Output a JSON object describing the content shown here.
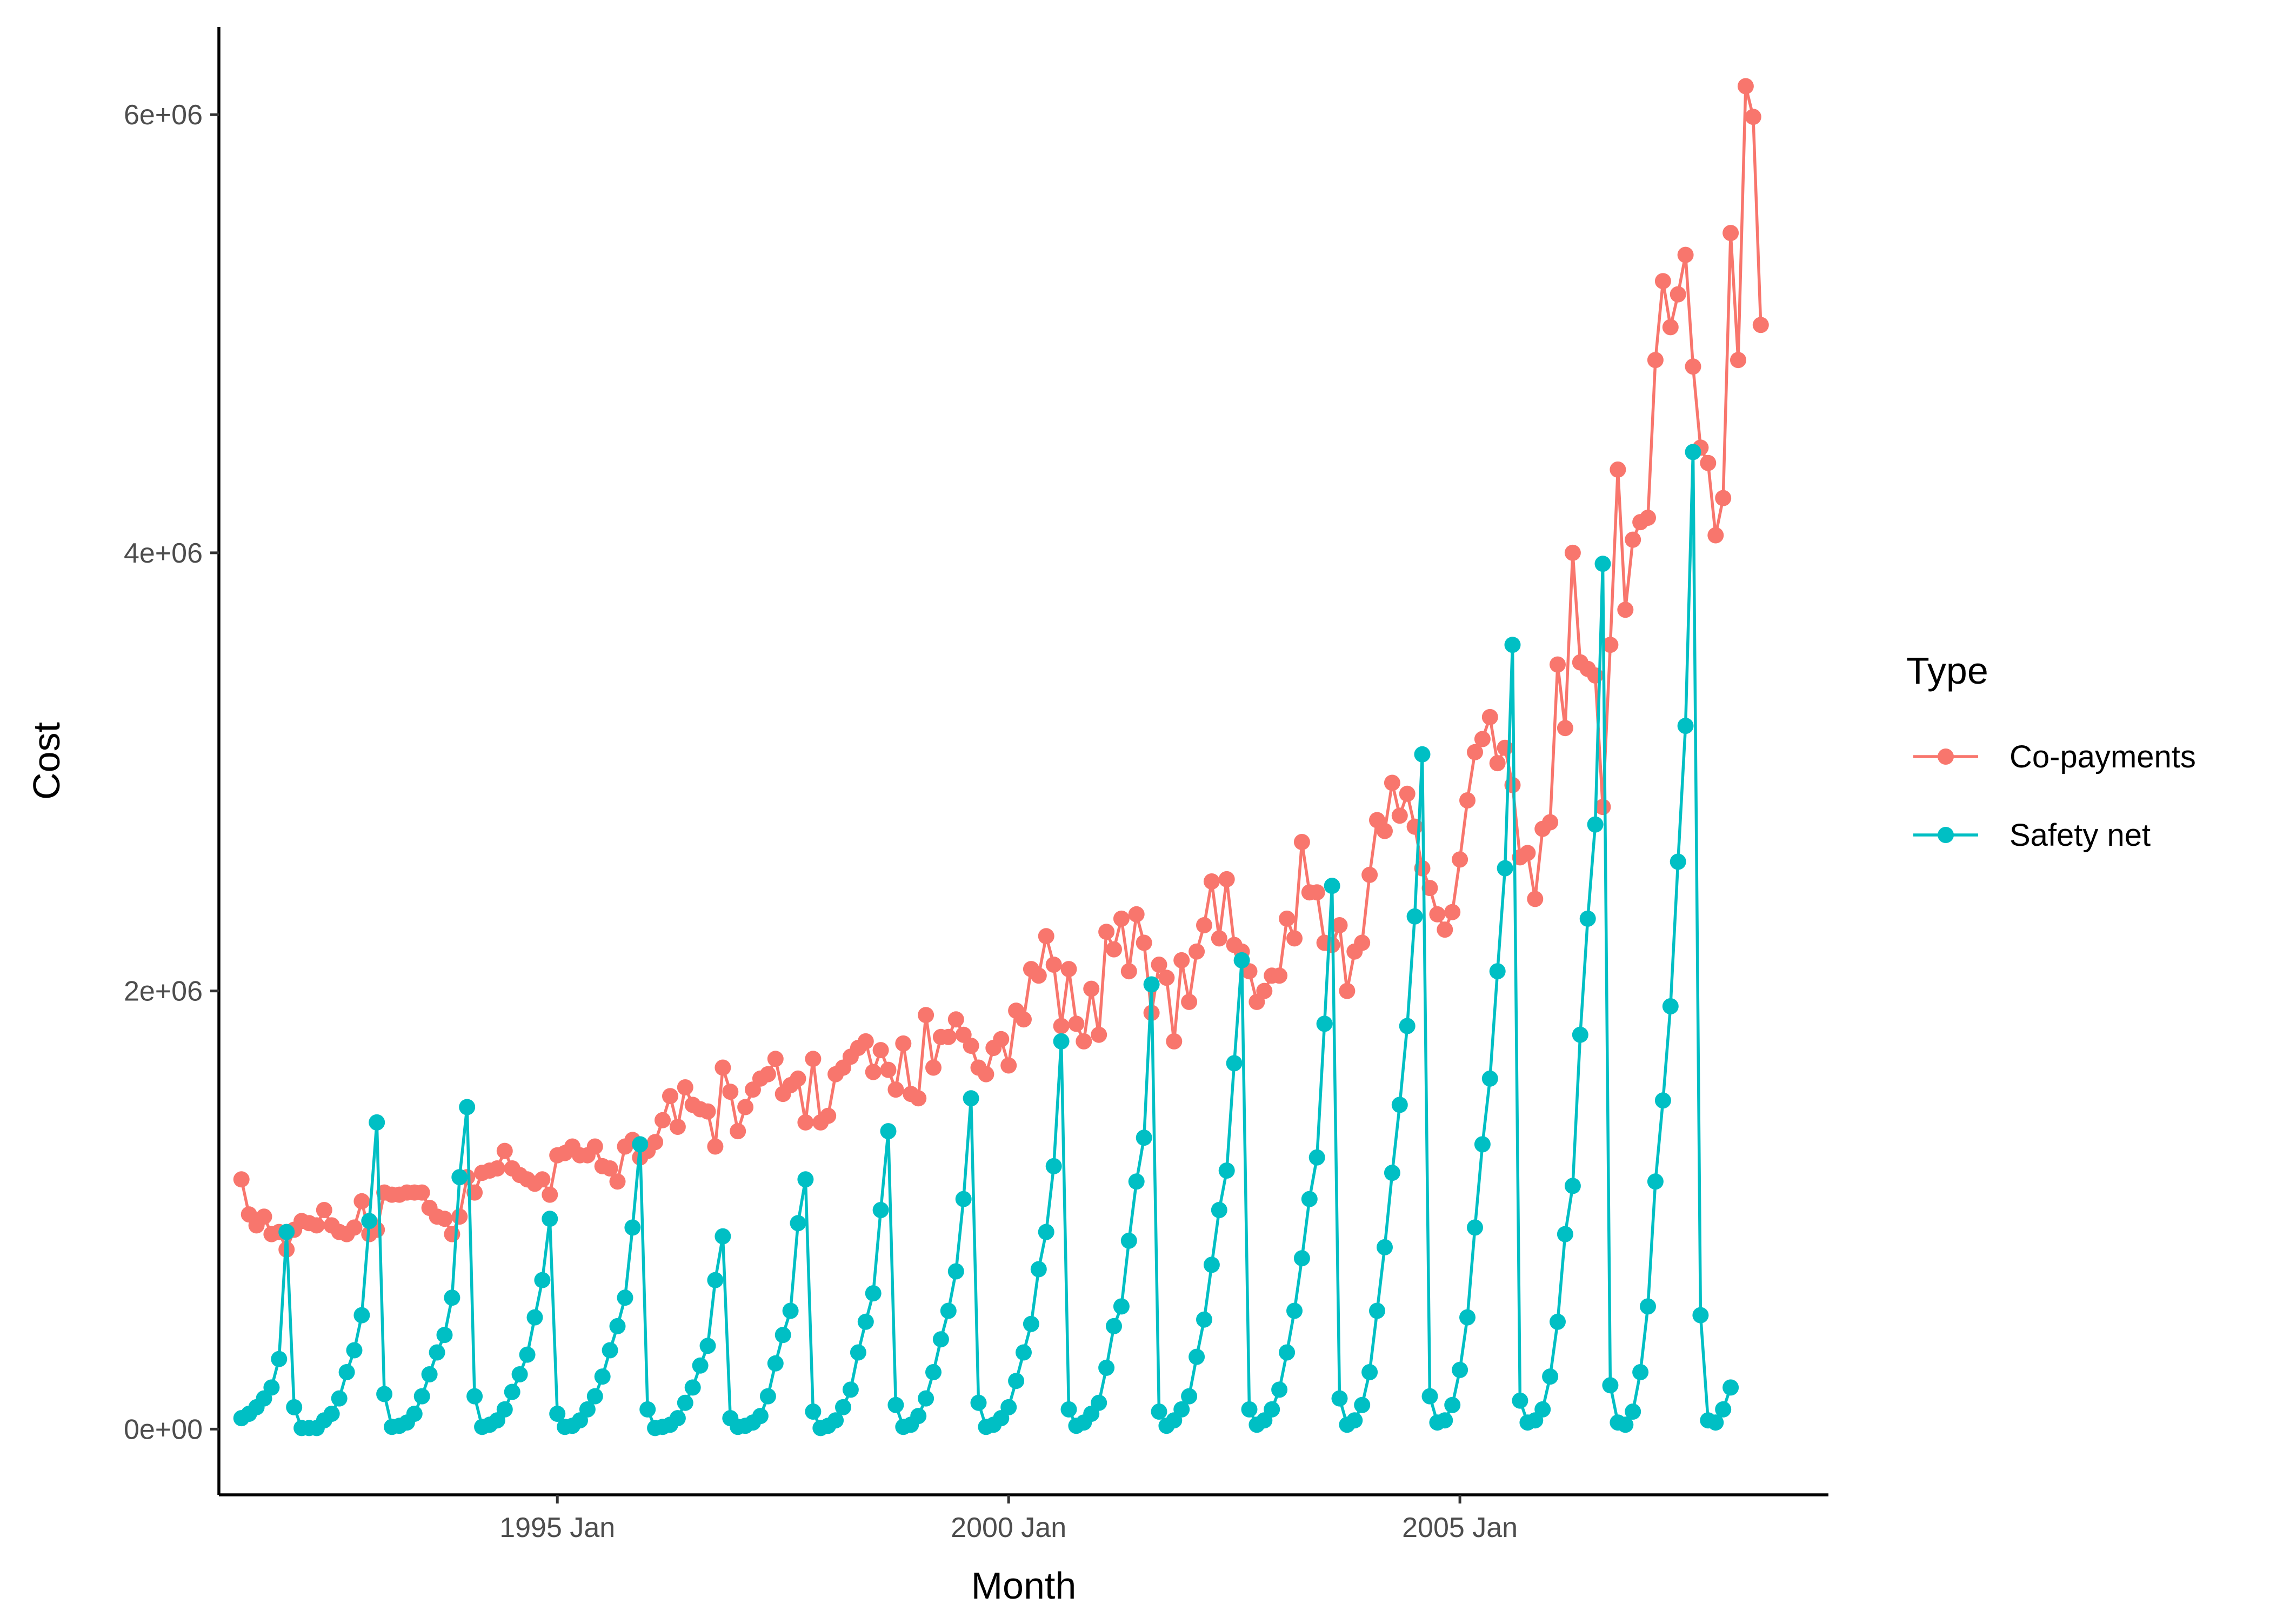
{
  "chart_data": {
    "type": "line",
    "xlabel": "Month",
    "ylabel": "Cost",
    "x_tick_labels": [
      "1995 Jan",
      "2000 Jan",
      "2005 Jan"
    ],
    "y_tick_labels": [
      "0e+00",
      "2e+06",
      "4e+06",
      "6e+06"
    ],
    "y_ticks": [
      0,
      2000000,
      4000000,
      6000000
    ],
    "ylim": [
      -300000,
      6400000
    ],
    "xlim": [
      "1991-04",
      "2009-02"
    ],
    "grid": false,
    "legend": {
      "title": "Type",
      "position": "right",
      "entries": [
        "Co-payments",
        "Safety net"
      ]
    },
    "start_month": "1991-07",
    "series": [
      {
        "name": "Co-payments",
        "color": "#F8766D",
        "values": [
          1140000,
          980000,
          930000,
          970000,
          890000,
          900000,
          820000,
          910000,
          950000,
          940000,
          930000,
          1000000,
          930000,
          900000,
          890000,
          920000,
          1040000,
          890000,
          910000,
          1080000,
          1070000,
          1070000,
          1080000,
          1080000,
          1080000,
          1010000,
          970000,
          960000,
          890000,
          970000,
          1150000,
          1080000,
          1170000,
          1180000,
          1190000,
          1270000,
          1190000,
          1160000,
          1140000,
          1120000,
          1140000,
          1070000,
          1250000,
          1260000,
          1290000,
          1250000,
          1250000,
          1290000,
          1200000,
          1190000,
          1130000,
          1290000,
          1320000,
          1240000,
          1270000,
          1310000,
          1410000,
          1520000,
          1380000,
          1560000,
          1480000,
          1460000,
          1450000,
          1290000,
          1650000,
          1540000,
          1360000,
          1470000,
          1550000,
          1600000,
          1620000,
          1690000,
          1530000,
          1570000,
          1600000,
          1400000,
          1690000,
          1400000,
          1430000,
          1620000,
          1650000,
          1700000,
          1740000,
          1770000,
          1630000,
          1730000,
          1640000,
          1550000,
          1760000,
          1530000,
          1510000,
          1890000,
          1650000,
          1790000,
          1790000,
          1870000,
          1800000,
          1750000,
          1650000,
          1620000,
          1740000,
          1780000,
          1660000,
          1910000,
          1870000,
          2100000,
          2070000,
          2250000,
          2120000,
          1840000,
          2100000,
          1850000,
          1770000,
          2010000,
          1800000,
          2270000,
          2190000,
          2330000,
          2090000,
          2350000,
          2220000,
          1900000,
          2120000,
          2060000,
          1770000,
          2140000,
          1950000,
          2180000,
          2300000,
          2500000,
          2240000,
          2510000,
          2210000,
          2180000,
          2090000,
          1950000,
          2000000,
          2070000,
          2070000,
          2330000,
          2240000,
          2680000,
          2450000,
          2450000,
          2220000,
          2210000,
          2300000,
          2000000,
          2180000,
          2220000,
          2530000,
          2780000,
          2730000,
          2950000,
          2800000,
          2900000,
          2750000,
          2560000,
          2470000,
          2350000,
          2280000,
          2360000,
          2600000,
          2870000,
          3090000,
          3150000,
          3250000,
          3040000,
          3110000,
          2940000,
          2610000,
          2630000,
          2420000,
          2740000,
          2770000,
          3490000,
          3200000,
          4000000,
          3500000,
          3470000,
          3440000,
          2840000,
          3580000,
          4380000,
          3740000,
          4060000,
          4140000,
          4160000,
          4880000,
          5240000,
          5030000,
          5180000,
          5360000,
          4850000,
          4480000,
          4410000,
          4080000,
          4250000,
          5460000,
          4880000,
          6130000,
          5990000,
          5040000
        ]
      },
      {
        "name": "Safety net",
        "color": "#00BFC4",
        "values": [
          50000,
          70000,
          100000,
          140000,
          190000,
          320000,
          900000,
          100000,
          5000,
          5000,
          5000,
          40000,
          70000,
          140000,
          260000,
          360000,
          520000,
          950000,
          1400000,
          160000,
          10000,
          15000,
          30000,
          70000,
          150000,
          250000,
          350000,
          430000,
          600000,
          1150000,
          1470000,
          150000,
          10000,
          20000,
          40000,
          90000,
          170000,
          250000,
          340000,
          510000,
          680000,
          960000,
          70000,
          10000,
          15000,
          40000,
          90000,
          150000,
          240000,
          360000,
          470000,
          600000,
          920000,
          1300000,
          90000,
          5000,
          10000,
          20000,
          50000,
          120000,
          190000,
          290000,
          380000,
          680000,
          880000,
          50000,
          10000,
          15000,
          30000,
          60000,
          150000,
          300000,
          430000,
          540000,
          940000,
          1140000,
          80000,
          5000,
          15000,
          40000,
          100000,
          180000,
          350000,
          490000,
          620000,
          1000000,
          1360000,
          110000,
          10000,
          20000,
          60000,
          140000,
          260000,
          410000,
          540000,
          720000,
          1050000,
          1510000,
          120000,
          10000,
          20000,
          50000,
          100000,
          220000,
          350000,
          480000,
          730000,
          900000,
          1200000,
          1770000,
          90000,
          15000,
          30000,
          70000,
          120000,
          280000,
          470000,
          560000,
          860000,
          1130000,
          1330000,
          2030000,
          80000,
          15000,
          40000,
          90000,
          150000,
          330000,
          500000,
          750000,
          1000000,
          1180000,
          1670000,
          2140000,
          90000,
          20000,
          40000,
          90000,
          180000,
          350000,
          540000,
          780000,
          1050000,
          1240000,
          1850000,
          2480000,
          140000,
          20000,
          40000,
          110000,
          260000,
          540000,
          830000,
          1170000,
          1480000,
          1840000,
          2340000,
          3080000,
          150000,
          30000,
          40000,
          110000,
          270000,
          510000,
          920000,
          1300000,
          1600000,
          2090000,
          2560000,
          3580000,
          130000,
          30000,
          40000,
          90000,
          240000,
          490000,
          890000,
          1110000,
          1800000,
          2330000,
          2760000,
          3950000,
          200000,
          30000,
          20000,
          80000,
          260000,
          560000,
          1130000,
          1500000,
          1930000,
          2590000,
          3210000,
          4460000,
          520000,
          40000,
          30000,
          90000,
          190000
        ]
      }
    ]
  }
}
